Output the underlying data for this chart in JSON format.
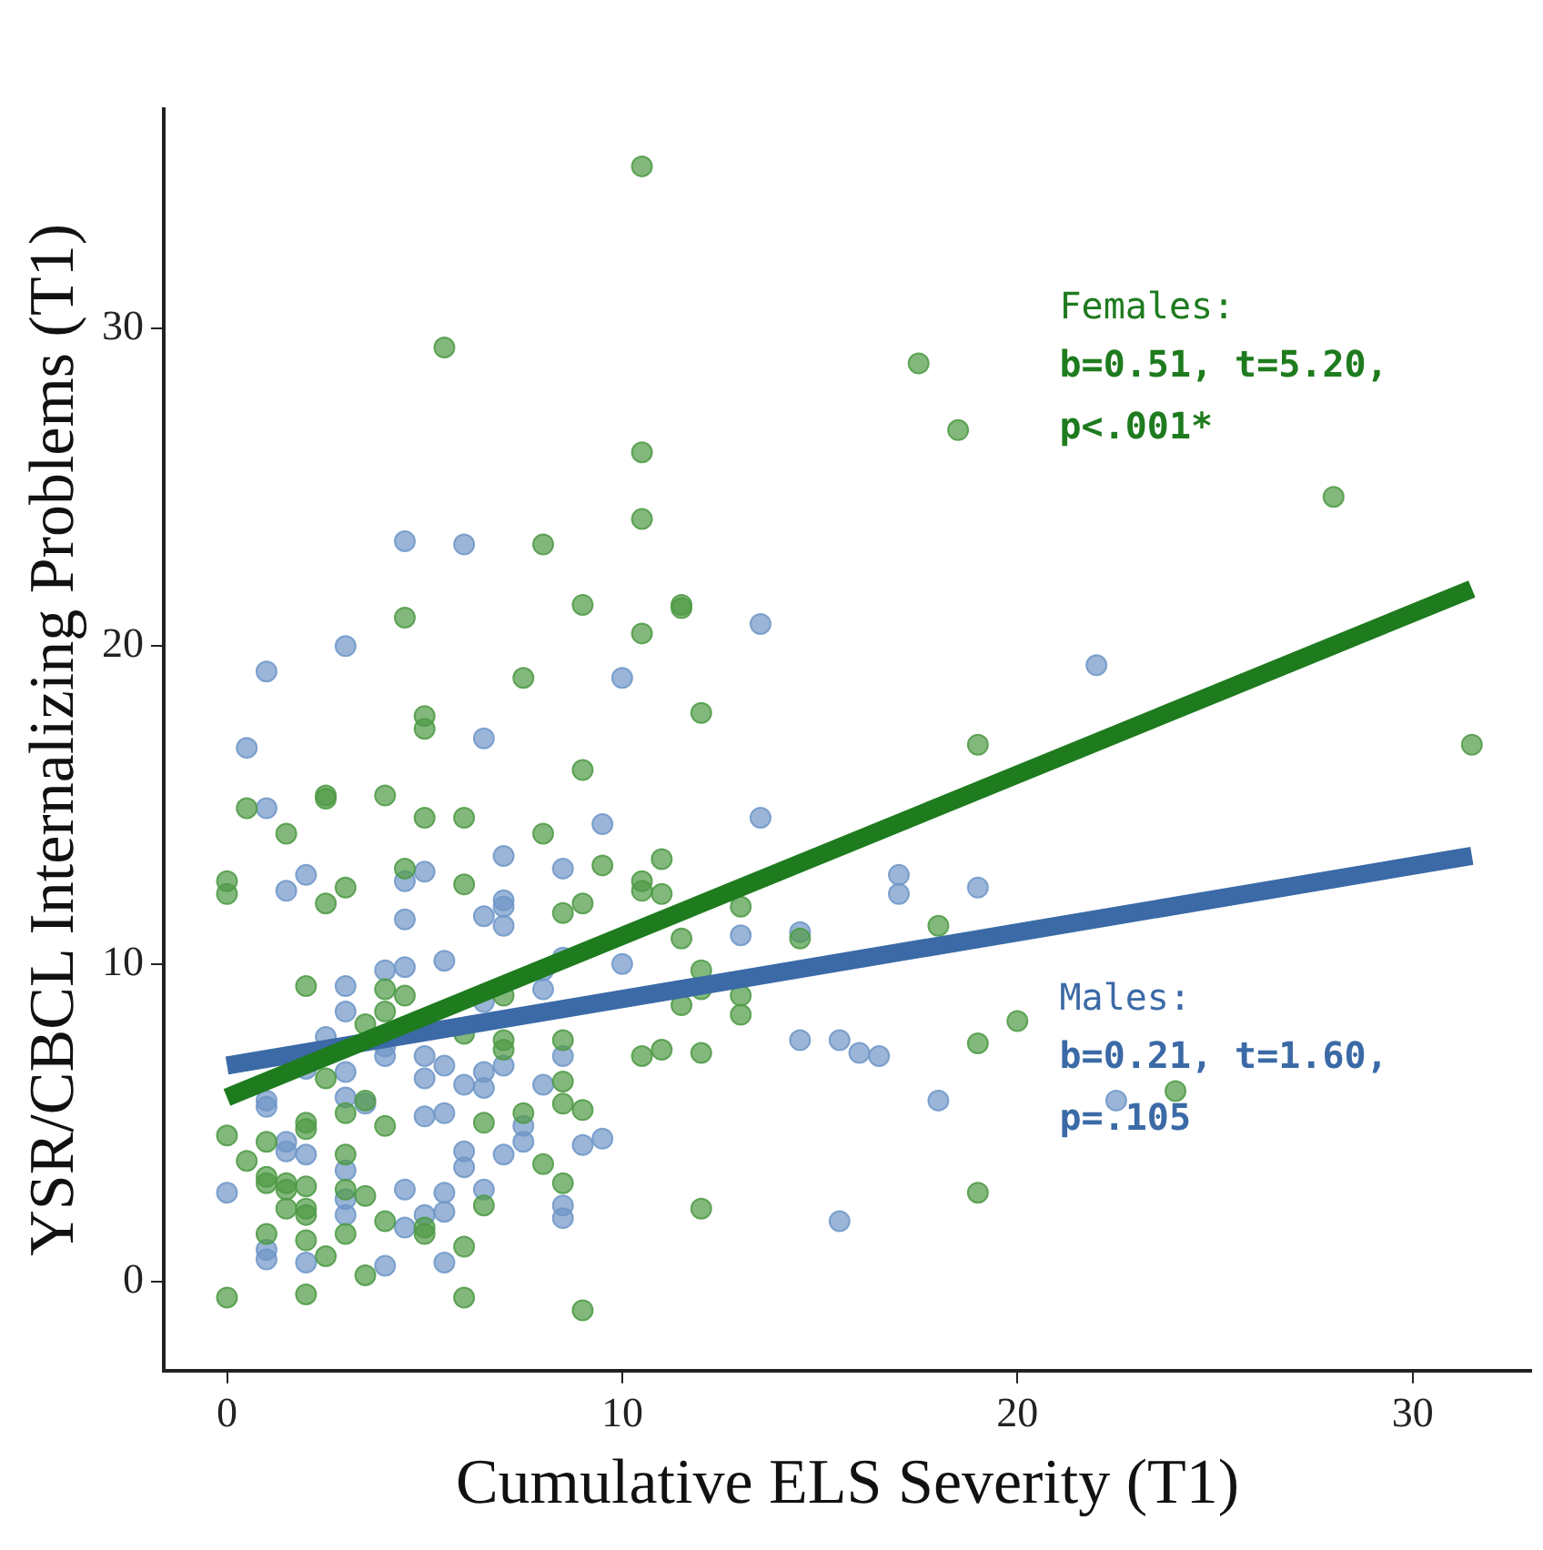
{
  "chart_data": {
    "type": "scatter",
    "xlabel": "Cumulative ELS Severity (T1)",
    "ylabel": "YSR/CBCL Internalizing Problems (T1)",
    "xlim": [
      -1.6,
      33
    ],
    "ylim": [
      -2.8,
      36.9
    ],
    "xticks": [
      0,
      10,
      20,
      30
    ],
    "yticks": [
      0,
      10,
      20,
      30
    ],
    "marker": "circle",
    "annotations": [
      "Females:",
      "b=0.51, t=5.20, p<.001*",
      "Males:",
      "b=0.21, t=1.60, p=.105"
    ],
    "series": [
      {
        "color": "#4e9a45",
        "x": [
          10.5,
          5.5,
          17.5,
          18.5,
          28,
          10.5,
          10.5,
          8,
          4.5,
          9,
          11.5,
          11.5,
          10.5,
          7.5,
          12,
          5,
          5,
          19,
          31.5,
          9,
          0.5,
          2.5,
          2.5,
          4,
          1.5,
          5,
          6,
          8,
          11,
          9.5,
          4.5,
          0,
          0,
          3,
          6,
          10.5,
          10.5,
          11,
          2.5,
          9,
          8.5,
          13,
          11.5,
          14.5,
          18,
          12,
          12,
          13,
          13,
          11.5,
          2,
          4,
          4.5,
          4,
          3.5,
          7,
          6,
          7,
          7,
          8.5,
          20,
          19,
          11,
          10.5,
          12,
          2.5,
          8.5,
          8.5,
          9,
          7.5,
          3,
          3.5,
          24,
          2,
          2,
          0,
          1,
          6.5,
          4,
          0.5,
          8,
          3,
          1,
          1,
          1.5,
          1.5,
          2,
          3,
          3.5,
          8.5,
          19,
          6.5,
          12,
          2,
          2,
          1.5,
          4,
          5,
          5,
          2,
          3,
          1,
          6,
          2.5,
          3.5,
          2,
          0,
          6,
          9
        ],
        "values": [
          35.1,
          29.4,
          28.9,
          26.8,
          24.7,
          26.1,
          24.0,
          23.2,
          20.9,
          21.3,
          21.3,
          21.2,
          20.4,
          19.0,
          17.9,
          17.8,
          17.4,
          16.9,
          16.9,
          16.1,
          14.9,
          15.3,
          15.2,
          15.3,
          14.1,
          14.6,
          14.6,
          14.1,
          13.3,
          13.1,
          13.0,
          12.6,
          12.2,
          12.4,
          12.5,
          12.6,
          12.3,
          12.2,
          11.9,
          11.9,
          11.6,
          11.8,
          10.8,
          10.8,
          11.2,
          9.8,
          9.2,
          9.0,
          8.4,
          8.7,
          9.3,
          9.2,
          9.0,
          8.5,
          8.1,
          9.0,
          7.8,
          7.6,
          7.3,
          7.6,
          8.2,
          7.5,
          7.3,
          7.1,
          7.2,
          6.4,
          6.3,
          5.6,
          5.4,
          5.3,
          5.3,
          5.7,
          6.0,
          5.0,
          4.8,
          4.6,
          4.4,
          5.0,
          4.9,
          3.8,
          3.7,
          4.0,
          3.3,
          3.1,
          3.1,
          2.9,
          3.0,
          2.9,
          2.7,
          3.1,
          2.8,
          2.4,
          2.3,
          2.3,
          2.1,
          2.3,
          1.9,
          1.7,
          1.5,
          1.3,
          1.5,
          1.5,
          1.1,
          0.8,
          0.2,
          -0.4,
          -0.5,
          -0.5,
          -0.9
        ]
      },
      {
        "color": "#6f96c8",
        "x": [
          4.5,
          6,
          3,
          13.5,
          1,
          10,
          22,
          0.5,
          6.5,
          1,
          13.5,
          9.5,
          7,
          1.5,
          2,
          4.5,
          5,
          8.5,
          17,
          17,
          19,
          7,
          7,
          6.5,
          4.5,
          7,
          13,
          14.5,
          5.5,
          4,
          4.5,
          10,
          8.5,
          8,
          8,
          3,
          3,
          6.5,
          2.5,
          4,
          4,
          5,
          14.5,
          15.5,
          16,
          16.5,
          8.5,
          7,
          6.5,
          5.5,
          2,
          3,
          5,
          6,
          6.5,
          8,
          1,
          1,
          3,
          3.5,
          5,
          5.5,
          18,
          22.5,
          7.5,
          7.5,
          9.5,
          9,
          1.5,
          1.5,
          2,
          6,
          6,
          7,
          3,
          0,
          3,
          3,
          4.5,
          5.5,
          6.5,
          8.5,
          8.5,
          5,
          5.5,
          15.5,
          4.5,
          1,
          1,
          2,
          4,
          5.5
        ],
        "values": [
          23.3,
          23.2,
          20.0,
          20.7,
          19.2,
          19.0,
          19.4,
          16.8,
          17.1,
          14.9,
          14.6,
          14.4,
          13.4,
          12.3,
          12.8,
          12.6,
          12.9,
          13.0,
          12.8,
          12.2,
          12.4,
          12.0,
          11.8,
          11.5,
          11.4,
          11.2,
          10.9,
          11.0,
          10.1,
          9.8,
          9.9,
          10.0,
          10.2,
          9.8,
          9.2,
          9.3,
          8.5,
          8.8,
          7.7,
          7.4,
          7.1,
          7.1,
          7.6,
          7.6,
          7.2,
          7.1,
          7.1,
          6.8,
          6.6,
          6.8,
          6.7,
          6.6,
          6.4,
          6.2,
          6.1,
          6.2,
          5.7,
          5.5,
          5.8,
          5.6,
          5.2,
          5.3,
          5.7,
          5.7,
          4.9,
          4.4,
          4.5,
          4.3,
          4.4,
          4.1,
          4.0,
          4.1,
          3.6,
          4.0,
          3.5,
          2.8,
          2.6,
          2.1,
          2.9,
          2.8,
          2.9,
          2.4,
          2.0,
          2.1,
          2.2,
          1.9,
          1.7,
          1.0,
          0.7,
          0.6,
          0.5,
          0.6
        ]
      },
      {
        "type": "line",
        "marker": "none",
        "color": "#1e7b1e",
        "x": [
          0,
          31.5
        ],
        "values": [
          5.8,
          21.8
        ]
      },
      {
        "type": "line",
        "marker": "none",
        "color": "#3b6aa6",
        "x": [
          0,
          31.5
        ],
        "values": [
          6.8,
          13.4
        ]
      }
    ]
  }
}
